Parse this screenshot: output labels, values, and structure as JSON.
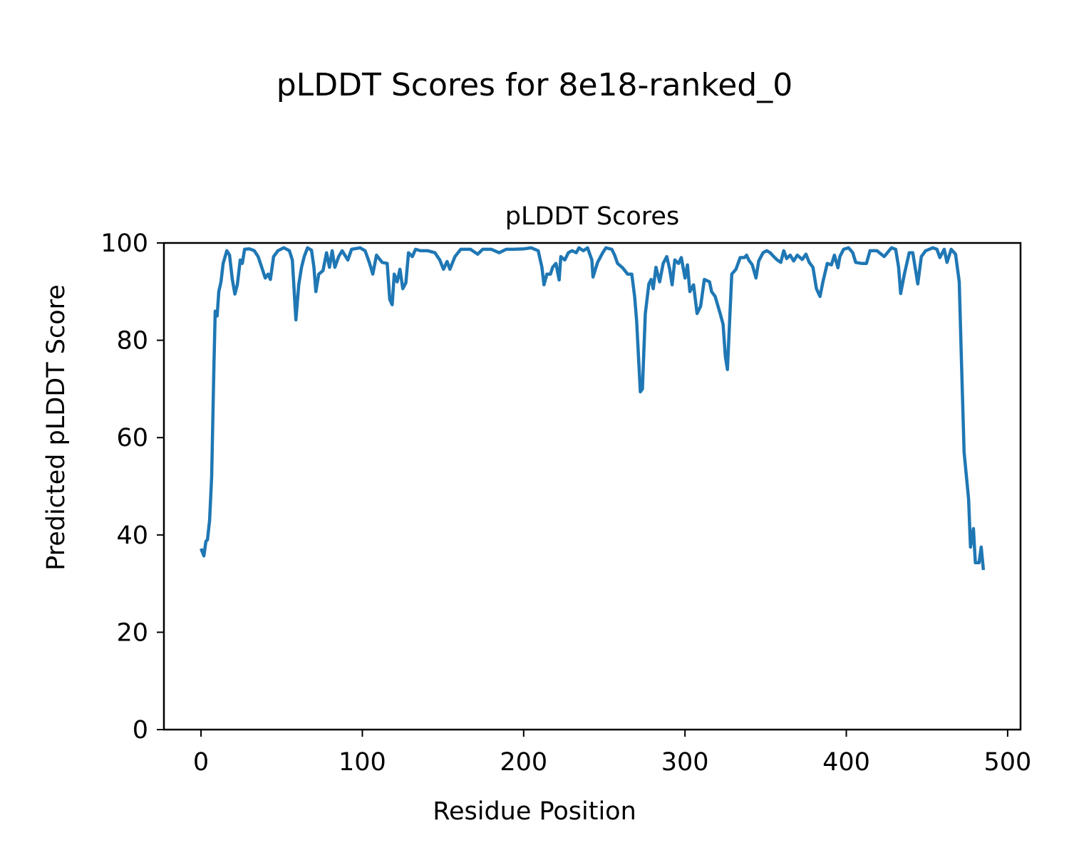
{
  "chart_data": {
    "type": "line",
    "suptitle": "pLDDT Scores for 8e18-ranked_0",
    "title": "pLDDT Scores",
    "xlabel": "Residue Position",
    "ylabel": "Predicted pLDDT Score",
    "xlim": [
      -23,
      508
    ],
    "ylim": [
      0,
      100
    ],
    "xticks": [
      0,
      100,
      200,
      300,
      400,
      500
    ],
    "xtick_labels": [
      "0",
      "100",
      "200",
      "300",
      "400",
      "500"
    ],
    "yticks": [
      0,
      20,
      40,
      60,
      80,
      100
    ],
    "ytick_labels": [
      "0",
      "20",
      "40",
      "60",
      "80",
      "100"
    ],
    "grid": false,
    "series": [
      {
        "name": "pLDDT",
        "color": "#1f77b4",
        "x": [
          0,
          1.8,
          3,
          4,
          5.3,
          6.6,
          8,
          8.8,
          10,
          11,
          12.4,
          13.7,
          16,
          17.7,
          19.4,
          21,
          22.5,
          24.3,
          25.6,
          27,
          30,
          33,
          35.4,
          37.6,
          39.8,
          41.6,
          43,
          45,
          47.7,
          51.3,
          54.8,
          56.6,
          58.8,
          60.6,
          62.3,
          64,
          66,
          68.5,
          70,
          71.2,
          73,
          75.6,
          77.8,
          79.6,
          81.3,
          83,
          85.3,
          87.5,
          91,
          93.3,
          98.6,
          101.7,
          104.3,
          106.5,
          108.8,
          112.3,
          115.4,
          117,
          118.5,
          119.8,
          121.6,
          123.3,
          125.1,
          127,
          128.6,
          131,
          133,
          136,
          140.6,
          145,
          148,
          150.3,
          152.5,
          154.3,
          157.4,
          161,
          167,
          171.5,
          174.6,
          180,
          184.8,
          189.2,
          193.6,
          200.3,
          204.7,
          209,
          211.3,
          212.6,
          214.4,
          216.6,
          218,
          220,
          222,
          223,
          225.5,
          227.7,
          230,
          232.6,
          234.3,
          237,
          239.6,
          242.3,
          243,
          245.8,
          249,
          251,
          254.6,
          256.4,
          258.2,
          261.3,
          264.4,
          267,
          268.8,
          270,
          272.3,
          273.6,
          275.4,
          277.6,
          279,
          280.3,
          282,
          284.3,
          286.5,
          288.7,
          290.5,
          292,
          293.7,
          296,
          297.7,
          300,
          301.5,
          303,
          305.3,
          307.5,
          309.7,
          312,
          315.2,
          316.5,
          318.7,
          321.8,
          323.6,
          325,
          326.3,
          329,
          331.6,
          334.2,
          336.9,
          338.2,
          339.5,
          341.7,
          344,
          345.7,
          348.4,
          350.6,
          352.8,
          355,
          357.2,
          359.4,
          361.2,
          363,
          365.2,
          367.4,
          369.6,
          372.7,
          375,
          377,
          379.3,
          381.5,
          383.7,
          385.5,
          388.2,
          390.8,
          392.6,
          394.8,
          396,
          398.3,
          401.4,
          404,
          405.8,
          409.4,
          412.5,
          414.7,
          419,
          423.5,
          428,
          430.6,
          432.4,
          433.7,
          436,
          439,
          441.2,
          444.3,
          446.5,
          449.2,
          453.6,
          456.2,
          458,
          460.7,
          462.4,
          465,
          467.7,
          470,
          471.3,
          473,
          475.8,
          477,
          478.8,
          480,
          482.3,
          483.6,
          485
        ],
        "y": [
          37.2,
          35.7,
          38.7,
          39,
          43,
          52,
          75,
          86,
          85,
          90,
          92,
          95.8,
          98.4,
          97.5,
          92.5,
          89.5,
          91.4,
          96.5,
          95.8,
          98.7,
          98.8,
          98.4,
          97.2,
          95,
          92.8,
          93.6,
          92.5,
          97.2,
          98.4,
          99,
          98.4,
          96.5,
          84.2,
          91.4,
          95,
          97.2,
          99,
          98.5,
          95,
          90,
          93.6,
          94.3,
          98,
          95,
          98.4,
          95,
          97.2,
          98.4,
          96.5,
          98.7,
          99,
          98.4,
          96,
          93.6,
          97.5,
          96,
          95.8,
          88.4,
          87.3,
          93.6,
          92,
          94.6,
          90.6,
          91.8,
          98,
          97.2,
          98.7,
          98.4,
          98.4,
          98,
          96.5,
          94.6,
          96.2,
          94.6,
          97.2,
          98.7,
          98.7,
          97.7,
          98.7,
          98.7,
          98,
          98.7,
          98.7,
          98.8,
          99,
          98.4,
          95,
          91.4,
          93.6,
          93.6,
          95,
          95.8,
          92.4,
          97.2,
          96.5,
          98,
          98.4,
          98,
          99,
          98.4,
          99,
          96.5,
          93,
          96,
          98,
          99,
          98.7,
          97.5,
          95.8,
          94.9,
          93.6,
          93.6,
          89,
          84,
          69.4,
          70,
          85.5,
          91.6,
          92.5,
          90.6,
          95,
          92,
          95.8,
          97.2,
          94.6,
          91.4,
          96.5,
          95.8,
          97,
          92.8,
          95.5,
          90,
          91.4,
          85.5,
          87,
          92.5,
          92,
          90,
          89,
          85.5,
          83.3,
          76.7,
          74,
          93.6,
          94.6,
          97,
          97,
          97.5,
          96.5,
          95.5,
          92.8,
          96.3,
          98,
          98.4,
          98,
          97.2,
          96.5,
          96,
          98.4,
          96.8,
          97.5,
          96.3,
          97.5,
          96.6,
          97.7,
          96,
          95,
          90.6,
          89,
          92,
          95.8,
          95.5,
          97.5,
          94.9,
          97.2,
          98.7,
          99,
          98,
          96,
          95.8,
          95.8,
          98.4,
          98.4,
          97.2,
          99,
          98.7,
          95,
          89.6,
          93.6,
          98,
          98,
          91.6,
          97.2,
          98.4,
          99,
          98.7,
          97,
          98.7,
          96,
          98.7,
          97.7,
          92,
          76.7,
          57,
          47.4,
          37.5,
          41.3,
          34.3,
          34.3,
          37.5,
          32.8
        ]
      }
    ]
  }
}
